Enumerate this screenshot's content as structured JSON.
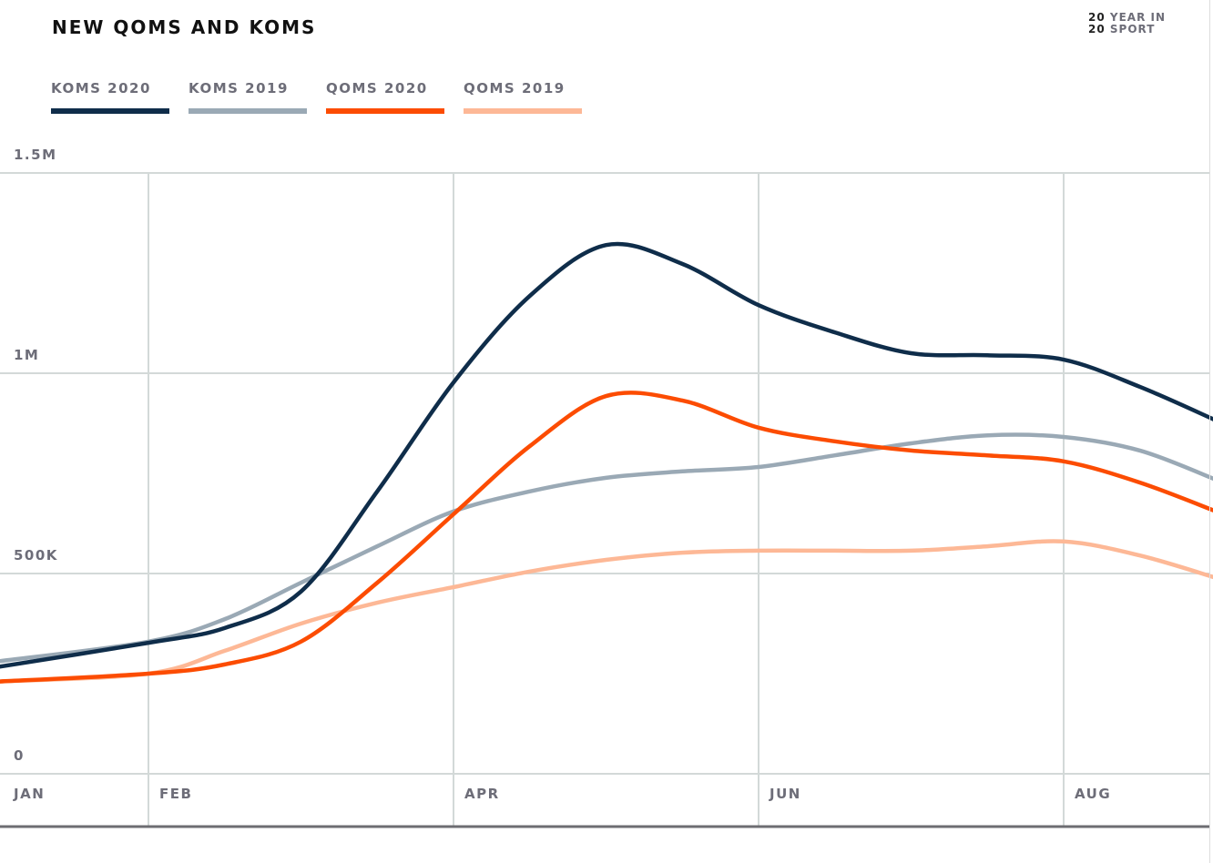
{
  "brand": {
    "line1_num": "20",
    "line1_text": "YEAR IN",
    "line2_num": "20",
    "line2_text": "SPORT"
  },
  "chart_data": {
    "type": "line",
    "title": "NEW QOMS AND KOMS",
    "x_ticks": [
      {
        "label": "JAN",
        "month": 1
      },
      {
        "label": "FEB",
        "month": 2
      },
      {
        "label": "APR",
        "month": 4
      },
      {
        "label": "JUN",
        "month": 6
      },
      {
        "label": "AUG",
        "month": 8
      }
    ],
    "y_ticks": [
      {
        "label": "0",
        "value": 0
      },
      {
        "label": "500K",
        "value": 500000
      },
      {
        "label": "1M",
        "value": 1000000
      },
      {
        "label": "1.5M",
        "value": 1500000
      }
    ],
    "xlim": [
      1,
      9
    ],
    "ylim": [
      0,
      1500000
    ],
    "grid": true,
    "legend": "top-left",
    "x": [
      1,
      2,
      2.5,
      3,
      3.5,
      4,
      4.5,
      5,
      5.5,
      6,
      6.5,
      7,
      7.5,
      8,
      8.5,
      9
    ],
    "series": [
      {
        "name": "KOMS 2020",
        "color": "#0f2d4a",
        "values": [
          266000,
          327000,
          364000,
          455000,
          705000,
          977000,
          1193000,
          1320000,
          1273000,
          1170000,
          1102000,
          1050000,
          1045000,
          1034000,
          966000,
          882000
        ]
      },
      {
        "name": "KOMS 2019",
        "color": "#9aa9b5",
        "values": [
          280000,
          330000,
          386000,
          477000,
          568000,
          655000,
          705000,
          739000,
          755000,
          766000,
          795000,
          825000,
          845000,
          841000,
          807000,
          734000
        ]
      },
      {
        "name": "QOMS 2020",
        "color": "#fc4c02",
        "values": [
          230000,
          250000,
          273000,
          330000,
          477000,
          648000,
          818000,
          943000,
          932000,
          864000,
          830000,
          807000,
          795000,
          780000,
          727000,
          655000
        ]
      },
      {
        "name": "QOMS 2019",
        "color": "#fdb896",
        "values": [
          230000,
          250000,
          307000,
          375000,
          427000,
          466000,
          505000,
          534000,
          552000,
          557000,
          557000,
          557000,
          568000,
          580000,
          545000,
          489000
        ]
      }
    ]
  }
}
